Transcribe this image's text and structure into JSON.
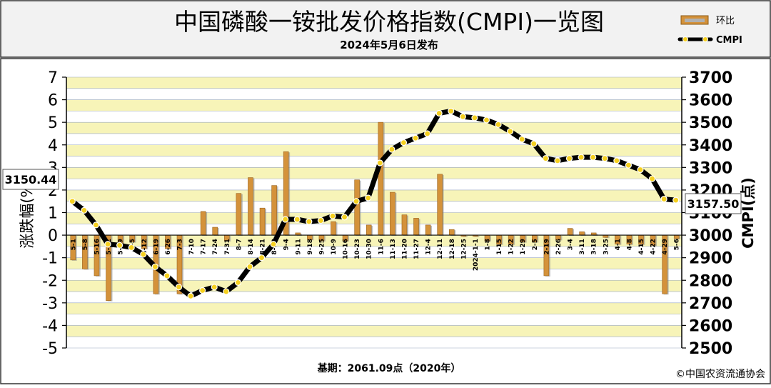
{
  "title": "中国磷酸一铵批发价格指数(CMPI)一览图",
  "subtitle": "2024年5月6日发布",
  "legend": {
    "bar_label": "环比",
    "line_label": "CMPI"
  },
  "footer": {
    "base_note": "基期：2061.09点（2020年）",
    "copyright": "©中国农资流通协会"
  },
  "callouts": {
    "start_value": "3150.44",
    "end_value": "3157.50"
  },
  "colors": {
    "bar": "#d4923a",
    "line": "#000000",
    "marker": "#f5d020",
    "band_yellow": "#f7f4b8",
    "band_white": "#ffffff",
    "header_bg": "#f2f2f2"
  },
  "chart_data": {
    "type": "bar+line",
    "title": "中国磷酸一铵批发价格指数(CMPI)一览图",
    "subtitle": "2024年5月6日发布",
    "ylabel_left": "涨跌幅(%)",
    "ylabel_right": "CMPI(点)",
    "ylim_left": [
      -5,
      7
    ],
    "ylim_right": [
      2500,
      3700
    ],
    "yticks_left": [
      "7",
      "6",
      "5",
      "4",
      "3",
      "2",
      "1",
      "0",
      "-1",
      "-2",
      "-3",
      "-4",
      "-5"
    ],
    "yticks_right": [
      "3700",
      "3600",
      "3500",
      "3400",
      "3300",
      "3200",
      "3100",
      "3000",
      "2900",
      "2800",
      "2700",
      "2600",
      "2500"
    ],
    "grid": true,
    "legend_position": "top-right",
    "categories": [
      "5-1",
      "5-8",
      "5-16",
      "5-22",
      "5-29",
      "6-5",
      "6-12",
      "6-19",
      "6-26",
      "7-3",
      "7-10",
      "7-17",
      "7-24",
      "7-31",
      "8-7",
      "8-14",
      "8-21",
      "8-28",
      "9-4",
      "9-11",
      "9-18",
      "9-25",
      "10-9",
      "10-16",
      "10-23",
      "10-30",
      "11-6",
      "11-13",
      "11-20",
      "11-27",
      "12-4",
      "12-11",
      "12-18",
      "12-25",
      "2024-1-1",
      "1-8",
      "1-15",
      "1-22",
      "1-29",
      "2-5",
      "2-19",
      "2-26",
      "3-4",
      "3-11",
      "3-18",
      "3-25",
      "4-1",
      "4-8",
      "4-15",
      "4-22",
      "4-29",
      "5-6"
    ],
    "series": [
      {
        "name": "环比",
        "axis": "left",
        "values": [
          -1.1,
          -1.5,
          -1.8,
          -2.9,
          -0.4,
          -0.3,
          -0.6,
          -2.6,
          -0.6,
          -2.6,
          0.0,
          1.05,
          0.35,
          -0.25,
          1.85,
          2.55,
          1.2,
          2.2,
          3.7,
          0.1,
          -0.2,
          -0.25,
          0.6,
          -0.25,
          2.45,
          0.45,
          5.0,
          1.9,
          0.9,
          0.75,
          0.45,
          2.7,
          0.25,
          -0.05,
          -0.05,
          -0.25,
          -0.4,
          -0.4,
          -0.3,
          -0.3,
          -1.8,
          -0.2,
          0.3,
          0.15,
          0.1,
          -0.1,
          -0.4,
          -0.4,
          -0.4,
          -0.45,
          -2.6,
          -0.15
        ]
      },
      {
        "name": "CMPI",
        "axis": "right",
        "values": [
          3150,
          3110,
          3045,
          2960,
          2955,
          2945,
          2915,
          2860,
          2820,
          2770,
          2730,
          2755,
          2770,
          2750,
          2790,
          2860,
          2900,
          2960,
          3070,
          3070,
          3060,
          3065,
          3085,
          3080,
          3150,
          3165,
          3320,
          3380,
          3410,
          3430,
          3450,
          3540,
          3550,
          3525,
          3520,
          3510,
          3490,
          3460,
          3425,
          3405,
          3340,
          3330,
          3340,
          3345,
          3345,
          3340,
          3330,
          3310,
          3290,
          3250,
          3160,
          3155
        ]
      }
    ]
  }
}
